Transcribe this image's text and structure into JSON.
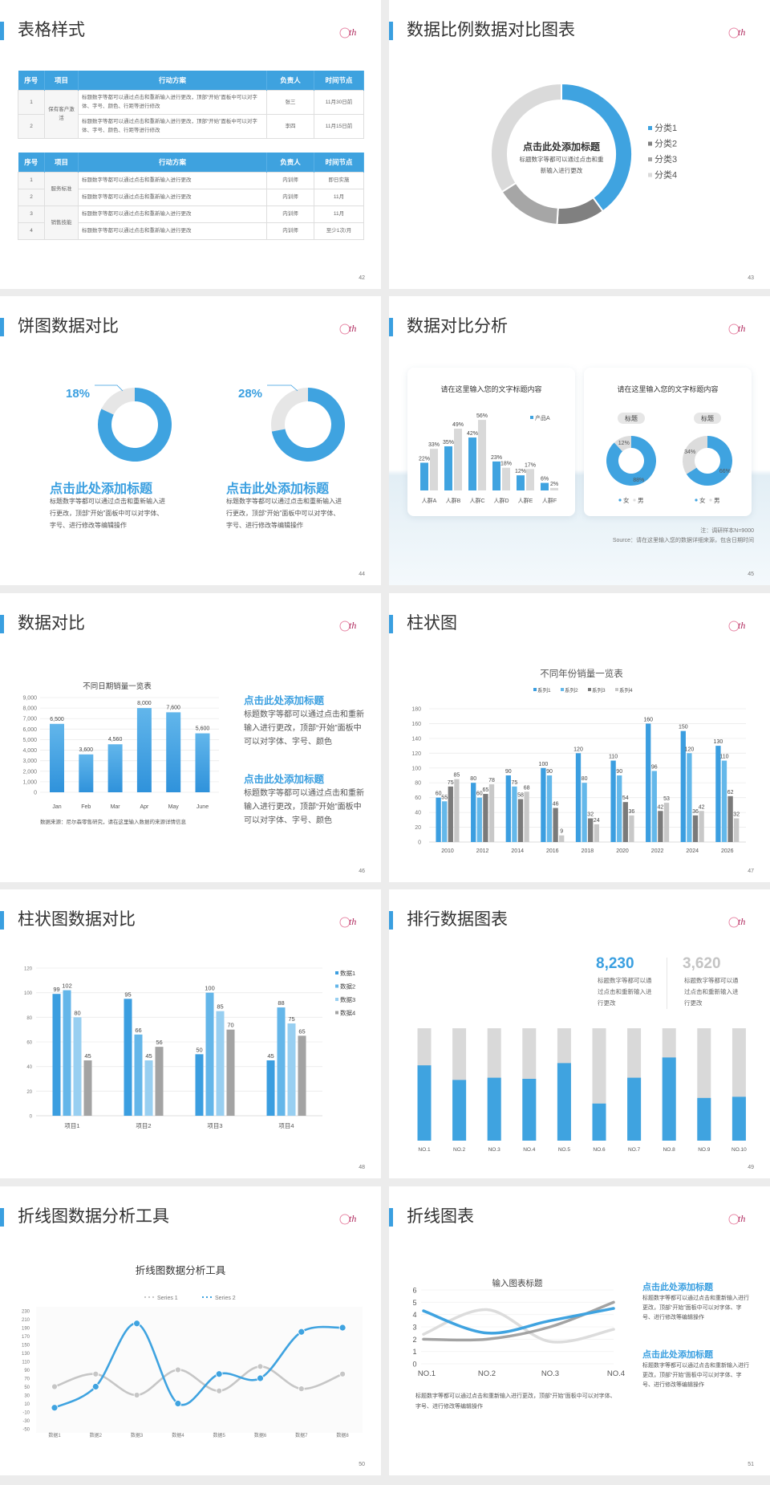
{
  "slides": [
    {
      "title": "表格样式",
      "page": "42",
      "table1": {
        "headers": [
          "序号",
          "项目",
          "行动方案",
          "负责人",
          "时间节点"
        ],
        "rows": [
          {
            "seq": "1",
            "item": "保有客户激活",
            "plan": "标题数字等都可以通过点击和重新输入进行更改，顶部“开始”面板中可以对字体、字号、颜色、行距等进行修改",
            "owner": "张三",
            "time": "11月30日前"
          },
          {
            "seq": "2",
            "plan": "标题数字等都可以通过点击和重新输入进行更改，顶部“开始”面板中可以对字体、字号、颜色、行距等进行修改",
            "owner": "李四",
            "time": "11月15日前"
          }
        ]
      },
      "table2": {
        "headers": [
          "序号",
          "项目",
          "行动方案",
          "负责人",
          "时间节点"
        ],
        "rows": [
          {
            "seq": "1",
            "item": "服务标准",
            "plan": "标题数字等都可以通过点击和重新输入进行更改",
            "owner": "内训师",
            "time": "即日实施"
          },
          {
            "seq": "2",
            "plan": "标题数字等都可以通过点击和重新输入进行更改",
            "owner": "内训师",
            "time": "11月"
          },
          {
            "seq": "3",
            "item": "销售技能",
            "plan": "标题数字等都可以通过点击和重新输入进行更改",
            "owner": "内训师",
            "time": "11月"
          },
          {
            "seq": "4",
            "plan": "标题数字等都可以通过点击和重新输入进行更改",
            "owner": "内训师",
            "time": "至少1次/月"
          }
        ]
      }
    },
    {
      "title": "数据比例数据对比图表",
      "page": "43",
      "center_title": "点击此处添加标题",
      "center_text": "标题数字等都可以通过点击和重新输入进行更改"
    },
    {
      "title": "饼图数据对比",
      "page": "44",
      "items": [
        {
          "heading": "点击此处添加标题",
          "text": "标题数字等都可以通过点击和重新输入进行更改，顶部“开始”面板中可以对字体、字号、进行修改等编辑操作"
        },
        {
          "heading": "点击此处添加标题",
          "text": "标题数字等都可以通过点击和重新输入进行更改，顶部“开始”面板中可以对字体、字号、进行修改等编辑操作"
        }
      ]
    },
    {
      "title": "数据对比分析",
      "page": "45",
      "cards": [
        {
          "title": "请在这里输入您的文字标题内容"
        },
        {
          "title": "请在这里输入您的文字标题内容",
          "pills": [
            "标题",
            "标题"
          ]
        }
      ],
      "note": "注：调研样本N=9000",
      "source": "Source：请在这里输入您的数据详细来源，包含日期时间"
    },
    {
      "title": "数据对比",
      "page": "46",
      "source": "数据来源：尼尔森零售研究，请在这里输入数据的来源详情信息",
      "items": [
        {
          "heading": "点击此处添加标题",
          "text": "标题数字等都可以通过点击和重新输入进行更改，顶部“开始”面板中可以对字体、字号、颜色"
        },
        {
          "heading": "点击此处添加标题",
          "text": "标题数字等都可以通过点击和重新输入进行更改，顶部“开始”面板中可以对字体、字号、颜色"
        }
      ]
    },
    {
      "title": "柱状图",
      "page": "47"
    },
    {
      "title": "柱状图数据对比",
      "page": "48"
    },
    {
      "title": "排行数据图表",
      "page": "49",
      "stats": [
        {
          "value": "8,230",
          "text": "标题数字等都可以通过点击和重新输入进行更改"
        },
        {
          "value": "3,620",
          "text": "标题数字等都可以通过点击和重新输入进行更改"
        }
      ]
    },
    {
      "title": "折线图数据分析工具",
      "page": "50"
    },
    {
      "title": "折线图表",
      "page": "51",
      "items": [
        {
          "heading": "点击此处添加标题",
          "text": "标题数字等都可以通过点击和重新输入进行更改，顶部“开始”面板中可以对字体、字号、进行修改等编辑操作"
        },
        {
          "heading": "点击此处添加标题",
          "text": "标题数字等都可以通过点击和重新输入进行更改，顶部“开始”面板中可以对字体、字号、进行修改等编辑操作"
        }
      ],
      "caption": "标题数字等都可以通过点击和重新输入进行更改，顶部“开始”面板中可以对字体、字号、进行修改等编辑操作"
    }
  ],
  "colors": {
    "accent": "#3a9fe0",
    "gray": "#a6a6a6",
    "light_gray": "#d9d9d9"
  },
  "chart_data": [
    {
      "type": "pie",
      "donut": true,
      "categories": [
        "分类1",
        "分类2",
        "分类3",
        "分类4"
      ],
      "values": [
        40,
        11,
        15,
        34
      ],
      "colors": [
        "#3fa3e0",
        "#808080",
        "#a6a6a6",
        "#dadada"
      ],
      "legend": "right"
    },
    {
      "type": "pie",
      "donut": true,
      "values": [
        18,
        82
      ],
      "label": "18%",
      "colors": [
        "#e6e6e6",
        "#3fa3e0"
      ]
    },
    {
      "type": "pie",
      "donut": true,
      "values": [
        28,
        72
      ],
      "label": "28%",
      "colors": [
        "#e6e6e6",
        "#3fa3e0"
      ]
    },
    {
      "type": "bar",
      "title": "请在这里输入您的文字标题内容",
      "categories": [
        "人群A",
        "人群B",
        "人群C",
        "人群D",
        "人群E",
        "人群F"
      ],
      "series": [
        {
          "name": "产品A",
          "values": [
            22,
            35,
            42,
            23,
            12,
            6
          ],
          "labels": [
            "22%",
            "35%",
            "42%",
            "23%",
            "12%",
            "6%"
          ],
          "color": "#3fa3e0"
        },
        {
          "values": [
            33,
            49,
            56,
            18,
            17,
            2
          ],
          "labels": [
            "33%",
            "49%",
            "56%",
            "18%",
            "17%",
            "2%"
          ],
          "color": "#d9d9d9"
        }
      ],
      "legend": "top-right"
    },
    {
      "type": "pie",
      "donut": true,
      "title": "标题",
      "categories": [
        "女",
        "男"
      ],
      "values": [
        88,
        12
      ],
      "labels": [
        "88%",
        "12%"
      ],
      "colors": [
        "#3fa3e0",
        "#dcdcdc"
      ],
      "legend": "bottom"
    },
    {
      "type": "pie",
      "donut": true,
      "title": "标题",
      "categories": [
        "女",
        "男"
      ],
      "values": [
        66,
        34
      ],
      "labels": [
        "66%",
        "34%"
      ],
      "colors": [
        "#3fa3e0",
        "#dcdcdc"
      ],
      "legend": "bottom"
    },
    {
      "type": "bar",
      "title": "不同日期销量一览表",
      "categories": [
        "Jan",
        "Feb",
        "Mar",
        "Apr",
        "May",
        "June"
      ],
      "values": [
        6500,
        3600,
        4560,
        8000,
        7600,
        5600
      ],
      "value_labels": [
        "6,500",
        "3,600",
        "4,560",
        "8,000",
        "7,600",
        "5,600"
      ],
      "ylim": [
        0,
        9000
      ],
      "yticks": [
        "0",
        "1,000",
        "2,000",
        "3,000",
        "4,000",
        "5,000",
        "6,000",
        "7,000",
        "8,000",
        "9,000"
      ],
      "grid": true
    },
    {
      "type": "bar",
      "title": "不同年份销量一览表",
      "categories": [
        "2010",
        "2012",
        "2014",
        "2016",
        "2018",
        "2020",
        "2022",
        "2024",
        "2026"
      ],
      "series": [
        {
          "name": "系列1",
          "values": [
            60,
            80,
            90,
            100,
            120,
            110,
            160,
            150,
            130
          ],
          "color": "#3b9ee0"
        },
        {
          "name": "系列2",
          "values": [
            55,
            60,
            75,
            90,
            80,
            90,
            96,
            120,
            110
          ],
          "color": "#64b8ea"
        },
        {
          "name": "系列3",
          "values": [
            75,
            65,
            58,
            46,
            32,
            54,
            42,
            36,
            62
          ],
          "color": "#7a7a7a"
        },
        {
          "name": "系列4",
          "values": [
            85,
            78,
            68,
            9,
            24,
            36,
            53,
            42,
            32
          ],
          "color": "#c8c8c8"
        }
      ],
      "ylim": [
        0,
        180
      ],
      "yticks": [
        "0",
        "20",
        "40",
        "60",
        "80",
        "100",
        "120",
        "140",
        "160",
        "180"
      ],
      "grid": true,
      "legend": "top"
    },
    {
      "type": "bar",
      "categories": [
        "项目1",
        "项目2",
        "项目3",
        "项目4"
      ],
      "series": [
        {
          "name": "数据1",
          "values": [
            99,
            95,
            50,
            45
          ],
          "color": "#3b9ee0"
        },
        {
          "name": "数据2",
          "values": [
            102,
            66,
            100,
            88
          ],
          "color": "#64b6e9"
        },
        {
          "name": "数据3",
          "values": [
            80,
            45,
            85,
            75
          ],
          "color": "#98cff1"
        },
        {
          "name": "数据4",
          "values": [
            45,
            56,
            70,
            65
          ],
          "color": "#a3a3a3"
        }
      ],
      "ylim": [
        0,
        120
      ],
      "yticks": [
        "0",
        "20",
        "40",
        "60",
        "80",
        "100",
        "120"
      ],
      "grid": true,
      "legend": "right"
    },
    {
      "type": "bar",
      "stacked_percent": true,
      "categories": [
        "NO.1",
        "NO.2",
        "NO.3",
        "NO.4",
        "NO.5",
        "NO.6",
        "NO.7",
        "NO.8",
        "NO.9",
        "NO.10"
      ],
      "values_percent": [
        67,
        54,
        56,
        55,
        69,
        33,
        56,
        74,
        38,
        39
      ],
      "colors": [
        "#3fa3e0",
        "#d9d9d9"
      ]
    },
    {
      "type": "line",
      "title": "折线图数据分析工具",
      "smooth": true,
      "categories": [
        "数据1",
        "数据2",
        "数据3",
        "数据4",
        "数据5",
        "数据6",
        "数据7",
        "数据8"
      ],
      "series": [
        {
          "name": "Series 1",
          "values": [
            50,
            80,
            30,
            90,
            40,
            98,
            45,
            80
          ],
          "color": "#c6c6c6"
        },
        {
          "name": "Series 2",
          "values": [
            0,
            50,
            200,
            10,
            80,
            70,
            180,
            190
          ],
          "color": "#3fa3e0"
        }
      ],
      "ylim": [
        -50,
        230
      ],
      "yticks": [
        "230",
        "210",
        "190",
        "170",
        "150",
        "130",
        "110",
        "90",
        "70",
        "50",
        "30",
        "10",
        "-10",
        "-30",
        "-50"
      ],
      "legend": "top"
    },
    {
      "type": "line",
      "title": "输入图表标题",
      "smooth": true,
      "categories": [
        "NO.1",
        "NO.2",
        "NO.3",
        "NO.4"
      ],
      "series": [
        {
          "values": [
            4.3,
            2.5,
            3.5,
            4.5
          ],
          "color": "#3fa3e0"
        },
        {
          "values": [
            2.0,
            2.0,
            3.0,
            5.0
          ],
          "color": "#a3a3a3"
        },
        {
          "values": [
            2.4,
            4.4,
            1.8,
            2.8
          ],
          "color": "#dcdcdc"
        }
      ],
      "ylim": [
        0,
        6
      ],
      "yticks": [
        "0",
        "1",
        "2",
        "3",
        "4",
        "5",
        "6"
      ]
    }
  ]
}
